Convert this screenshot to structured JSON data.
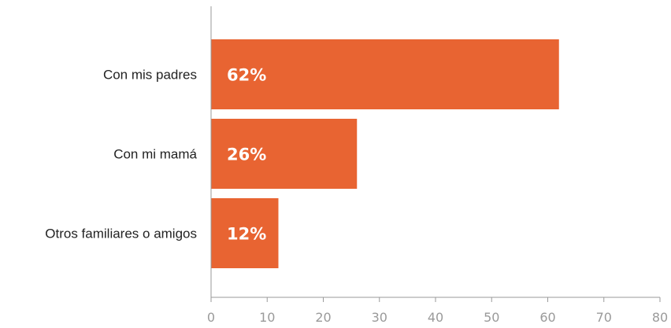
{
  "chart_data": {
    "type": "bar",
    "orientation": "horizontal",
    "categories": [
      "Con mis padres",
      "Con mi mamá",
      "Otros familiares o amigos"
    ],
    "values": [
      62,
      26,
      12
    ],
    "data_labels": [
      "62%",
      "26%",
      "12%"
    ],
    "xlim": [
      0,
      80
    ],
    "xticks": [
      0,
      10,
      20,
      30,
      40,
      50,
      60,
      70,
      80
    ],
    "grid": false,
    "legend": "none",
    "bar_color": "#E86432"
  }
}
